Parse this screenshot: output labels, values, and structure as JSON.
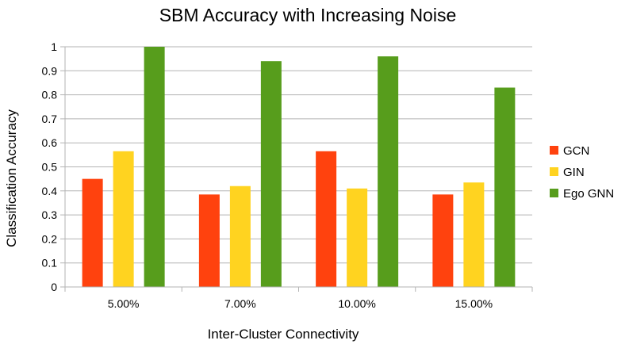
{
  "chart_data": {
    "type": "bar",
    "title": "SBM Accuracy with Increasing Noise",
    "xlabel": "Inter-Cluster Connectivity",
    "ylabel": "Classification Accuracy",
    "categories": [
      "5.00%",
      "7.00%",
      "10.00%",
      "15.00%"
    ],
    "ylim": [
      0,
      1
    ],
    "yticks": [
      "0",
      "0.1",
      "0.2",
      "0.3",
      "0.4",
      "0.5",
      "0.6",
      "0.7",
      "0.8",
      "0.9",
      "1"
    ],
    "grid": true,
    "legend_position": "right",
    "series": [
      {
        "name": "GCN",
        "color": "#ff420e",
        "values": [
          0.45,
          0.385,
          0.565,
          0.385
        ]
      },
      {
        "name": "GIN",
        "color": "#ffd320",
        "values": [
          0.565,
          0.42,
          0.41,
          0.435
        ]
      },
      {
        "name": "Ego GNN",
        "color": "#579d1c",
        "values": [
          1.0,
          0.94,
          0.96,
          0.83
        ]
      }
    ]
  }
}
